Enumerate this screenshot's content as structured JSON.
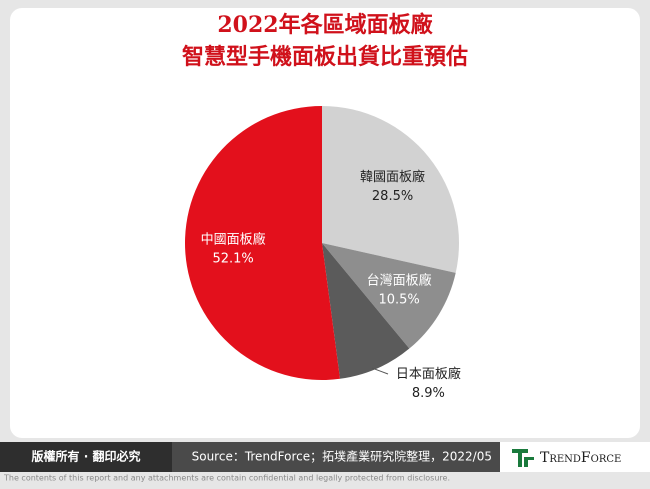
{
  "chart_data": {
    "type": "pie",
    "title": "2022年各區域面板廠",
    "subtitle": "智慧型手機面板出貨比重預估",
    "categories": [
      "韓國面板廠",
      "台灣面板廠",
      "日本面板廠",
      "中國面板廠"
    ],
    "values": [
      28.5,
      10.5,
      8.9,
      52.1
    ],
    "value_labels": [
      "28.5%",
      "10.5%",
      "8.9%",
      "52.1%"
    ],
    "colors": [
      "#d2d2d2",
      "#8e8e8e",
      "#5b5b5b",
      "#e3101c"
    ]
  },
  "footer": {
    "copyright": "版權所有 · 翻印必究",
    "source": "Source：TrendForce；拓墣產業研究院整理，2022/05",
    "logo": "TrendForce",
    "disclaimer": "The contents of this report and any attachments are contain confidential and legally protected from disclosure."
  }
}
